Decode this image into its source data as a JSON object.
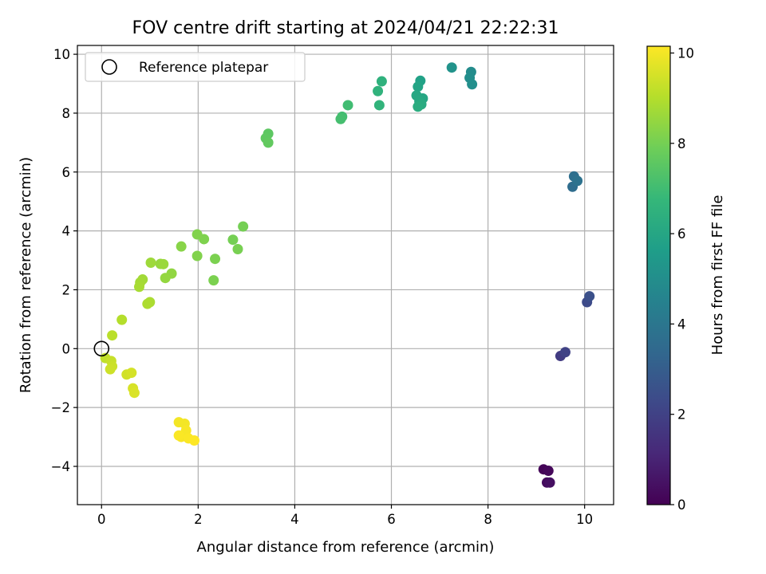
{
  "chart_data": {
    "type": "scatter",
    "title": "FOV centre drift starting at 2024/04/21 22:22:31",
    "xlabel": "Angular distance from reference (arcmin)",
    "ylabel": "Rotation from reference (arcmin)",
    "xlim": [
      -0.5,
      10.6
    ],
    "ylim": [
      -5.3,
      10.3
    ],
    "xticks": [
      0,
      2,
      4,
      6,
      8,
      10
    ],
    "yticks": [
      -4,
      -2,
      0,
      2,
      4,
      6,
      8,
      10
    ],
    "grid": true,
    "legend": {
      "placement": "top-left",
      "entries": [
        "Reference platepar"
      ]
    },
    "reference_point": {
      "x": 0,
      "y": 0,
      "marker": "open-circle"
    },
    "colorbar": {
      "label": "Hours from first FF file",
      "range": [
        0,
        10.15
      ],
      "ticks": [
        0,
        2,
        4,
        6,
        8,
        10
      ],
      "colormap": "viridis",
      "colors": [
        "#440154",
        "#482878",
        "#3e4989",
        "#31688e",
        "#26828e",
        "#1f9e89",
        "#35b779",
        "#6ece58",
        "#b5de2b",
        "#fde725"
      ]
    },
    "series": [
      {
        "x": [
          9.15,
          9.25,
          9.22,
          9.28,
          9.5,
          9.6,
          10.05,
          10.1,
          9.75,
          9.78,
          9.85,
          7.65,
          7.62,
          7.67,
          7.25,
          6.6,
          6.55,
          6.65,
          6.52,
          6.58,
          6.62,
          6.55,
          5.8,
          5.72,
          5.75,
          5.1,
          4.98,
          4.95,
          3.45,
          3.4,
          3.45,
          2.93,
          2.72,
          2.82,
          2.35,
          2.32,
          2.12,
          1.98,
          1.98,
          1.65,
          1.45,
          1.32,
          1.22,
          1.28,
          1.02,
          0.85,
          0.8,
          0.78,
          1.0,
          0.95,
          0.42,
          0.22,
          0.08,
          0.2,
          0.22,
          0.18,
          0.52,
          0.62,
          0.65,
          0.68,
          1.6,
          1.72,
          1.75,
          1.65,
          1.8,
          1.6,
          1.92
        ],
        "y": [
          -4.1,
          -4.15,
          -4.55,
          -4.55,
          -0.25,
          -0.12,
          1.58,
          1.78,
          5.5,
          5.85,
          5.7,
          9.4,
          9.2,
          8.98,
          9.55,
          9.1,
          8.9,
          8.5,
          8.6,
          8.4,
          8.3,
          8.22,
          9.08,
          8.75,
          8.27,
          8.27,
          7.88,
          7.8,
          7.3,
          7.15,
          7.0,
          4.15,
          3.7,
          3.38,
          3.05,
          2.32,
          3.72,
          3.88,
          3.15,
          3.47,
          2.55,
          2.4,
          2.88,
          2.87,
          2.92,
          2.35,
          2.25,
          2.1,
          1.58,
          1.52,
          0.98,
          0.45,
          -0.32,
          -0.42,
          -0.6,
          -0.7,
          -0.88,
          -0.82,
          -1.35,
          -1.5,
          -2.5,
          -2.55,
          -2.78,
          -3.0,
          -3.05,
          -2.95,
          -3.12
        ],
        "c": [
          0.1,
          0.2,
          0.3,
          0.4,
          1.8,
          2.0,
          2.3,
          2.5,
          3.6,
          3.7,
          3.8,
          4.9,
          5.0,
          5.05,
          5.2,
          5.8,
          5.9,
          6.0,
          6.05,
          6.1,
          6.2,
          6.25,
          6.5,
          6.55,
          6.6,
          7.0,
          7.05,
          7.1,
          7.55,
          7.6,
          7.65,
          8.0,
          8.0,
          8.05,
          8.1,
          8.1,
          8.15,
          8.2,
          8.2,
          8.3,
          8.45,
          8.5,
          8.55,
          8.6,
          8.65,
          8.7,
          8.75,
          8.8,
          8.85,
          8.9,
          9.0,
          9.1,
          9.2,
          9.3,
          9.35,
          9.4,
          9.45,
          9.5,
          9.55,
          9.6,
          10.0,
          10.0,
          10.05,
          10.05,
          10.1,
          10.1,
          10.15
        ]
      }
    ]
  }
}
